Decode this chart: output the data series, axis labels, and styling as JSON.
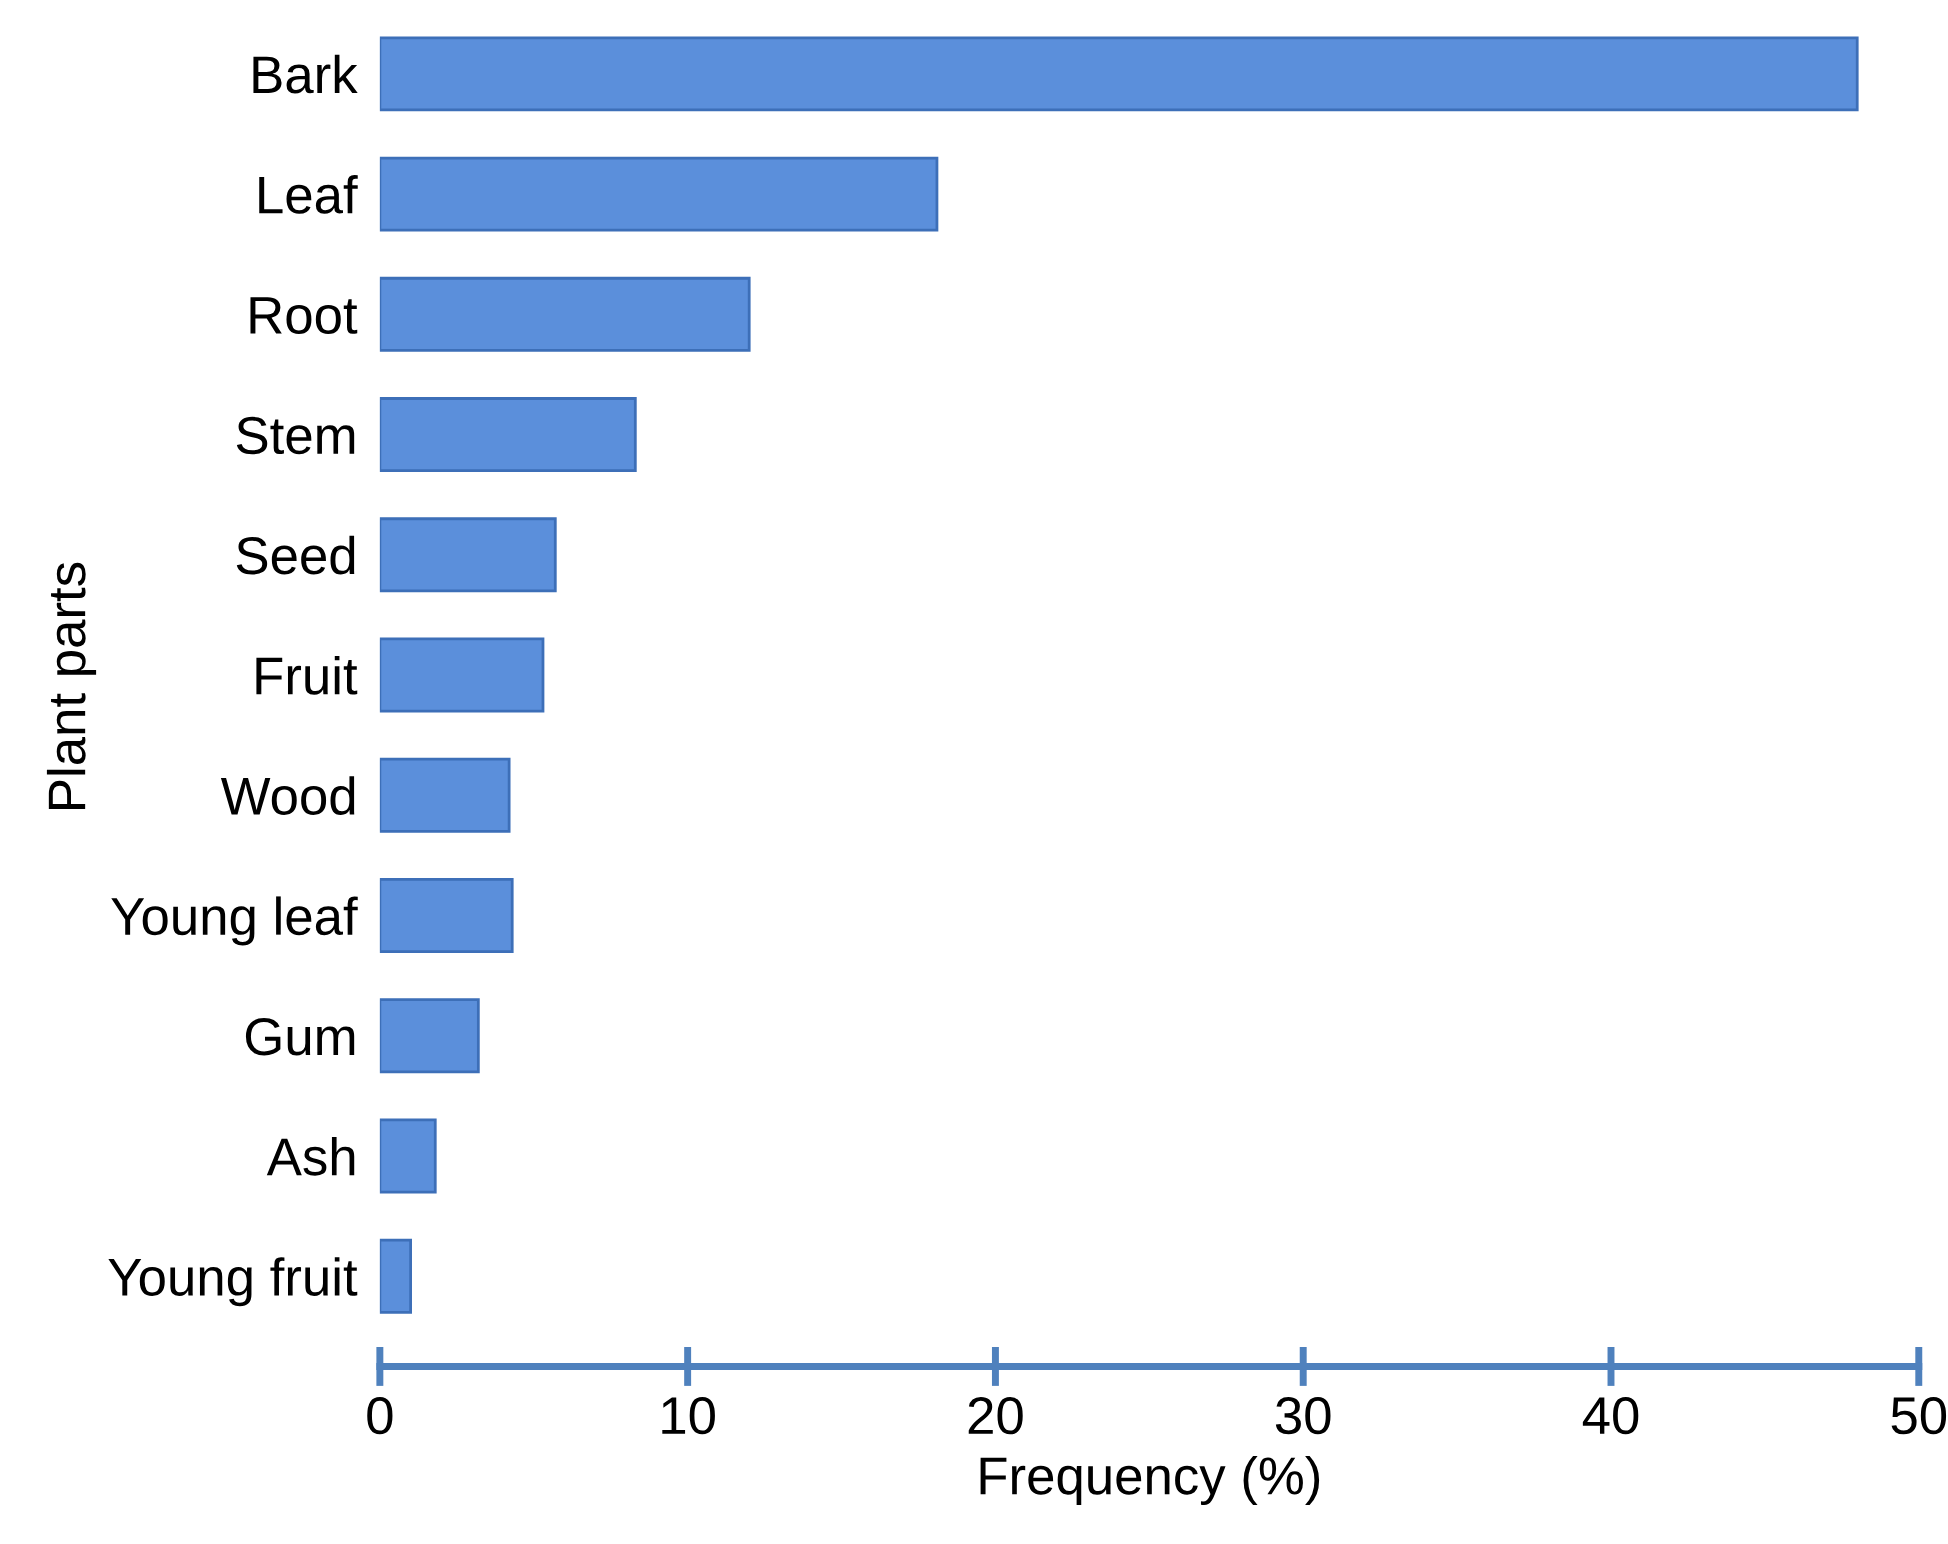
{
  "chart_data": {
    "type": "bar",
    "orientation": "horizontal",
    "xlabel": "Frequency (%)",
    "ylabel": "Plant parts",
    "categories": [
      "Bark",
      "Leaf",
      "Root",
      "Stem",
      "Seed",
      "Fruit",
      "Wood",
      "Young leaf",
      "Gum",
      "Ash",
      "Young fruit"
    ],
    "values": [
      48,
      18.1,
      12,
      8.3,
      5.7,
      5.3,
      4.2,
      4.3,
      3.2,
      1.8,
      1.0
    ],
    "color": "#5b8fdb",
    "xlim": [
      0,
      50
    ],
    "xticks": [
      0,
      10,
      20,
      30,
      40,
      50
    ],
    "grid": false,
    "legend": false
  }
}
